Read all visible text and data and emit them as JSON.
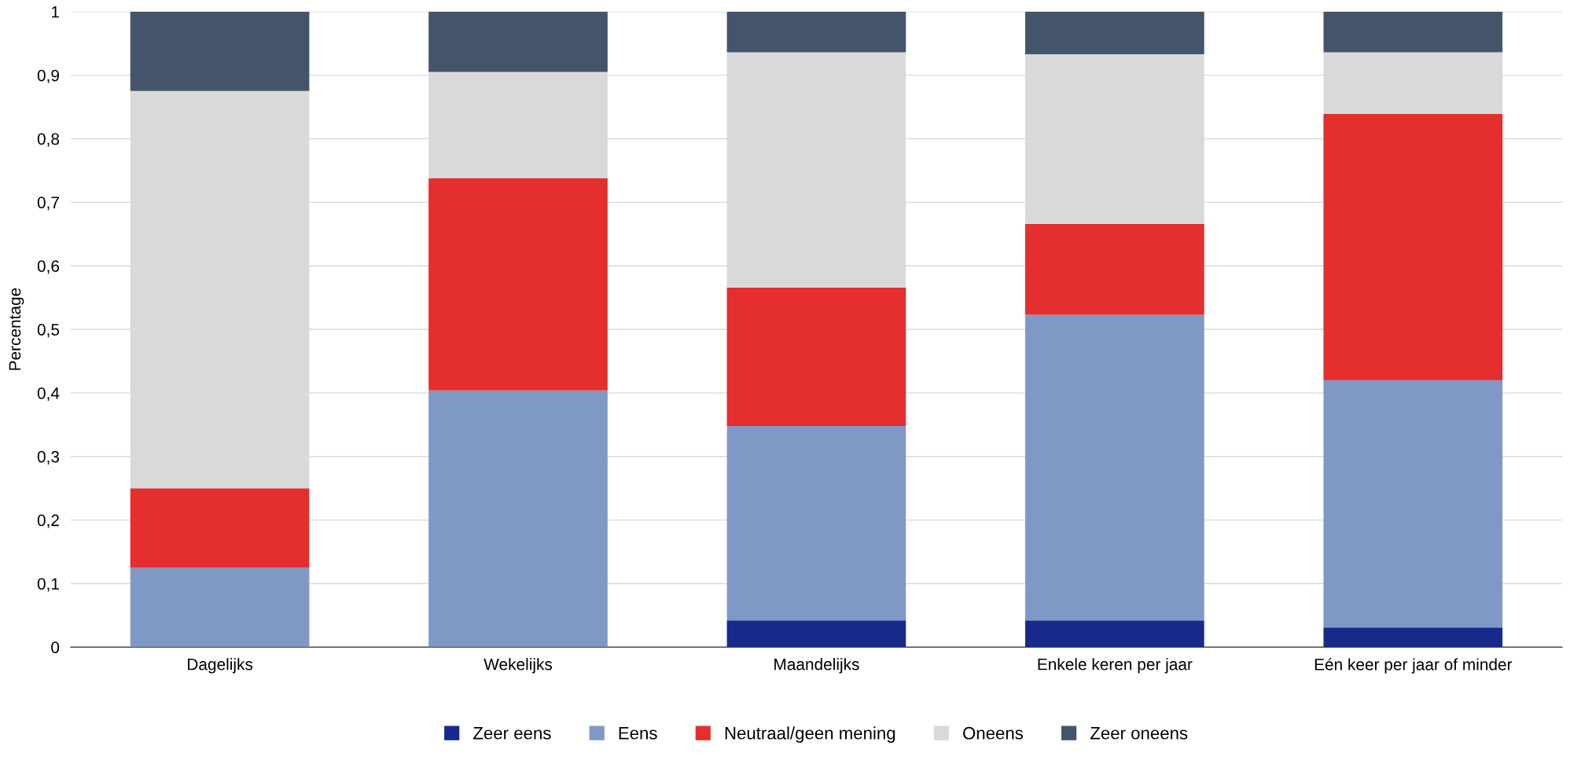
{
  "chart_data": {
    "type": "bar",
    "stacked": true,
    "ylabel": "Percentage",
    "categories": [
      "Dagelijks",
      "Wekelijks",
      "Maandelijks",
      "Enkele keren per jaar",
      "Eén keer per jaar of minder"
    ],
    "series": [
      {
        "name": "Zeer eens",
        "color": "#172a8c",
        "values": [
          0,
          0,
          0.042,
          0.042,
          0.031
        ]
      },
      {
        "name": "Eens",
        "color": "#8098c6",
        "values": [
          0.125,
          0.404,
          0.306,
          0.481,
          0.389
        ]
      },
      {
        "name": "Neutraal/geen mening",
        "color": "#e52e2e",
        "values": [
          0.125,
          0.334,
          0.218,
          0.143,
          0.419
        ]
      },
      {
        "name": "Oneens",
        "color": "#d9d9d9",
        "values": [
          0.625,
          0.167,
          0.37,
          0.267,
          0.097
        ]
      },
      {
        "name": "Zeer oneens",
        "color": "#44546a",
        "values": [
          0.125,
          0.095,
          0.064,
          0.067,
          0.064
        ]
      }
    ],
    "ylim": [
      0,
      1
    ],
    "yticks": [
      {
        "value": 0,
        "label": "0"
      },
      {
        "value": 0.1,
        "label": "0,1"
      },
      {
        "value": 0.2,
        "label": "0,2"
      },
      {
        "value": 0.3,
        "label": "0,3"
      },
      {
        "value": 0.4,
        "label": "0,4"
      },
      {
        "value": 0.5,
        "label": "0,5"
      },
      {
        "value": 0.6,
        "label": "0,6"
      },
      {
        "value": 0.7,
        "label": "0,7"
      },
      {
        "value": 0.8,
        "label": "0,8"
      },
      {
        "value": 0.9,
        "label": "0,9"
      },
      {
        "value": 1,
        "label": "1"
      }
    ],
    "grid": "y",
    "legend": "bottom"
  }
}
